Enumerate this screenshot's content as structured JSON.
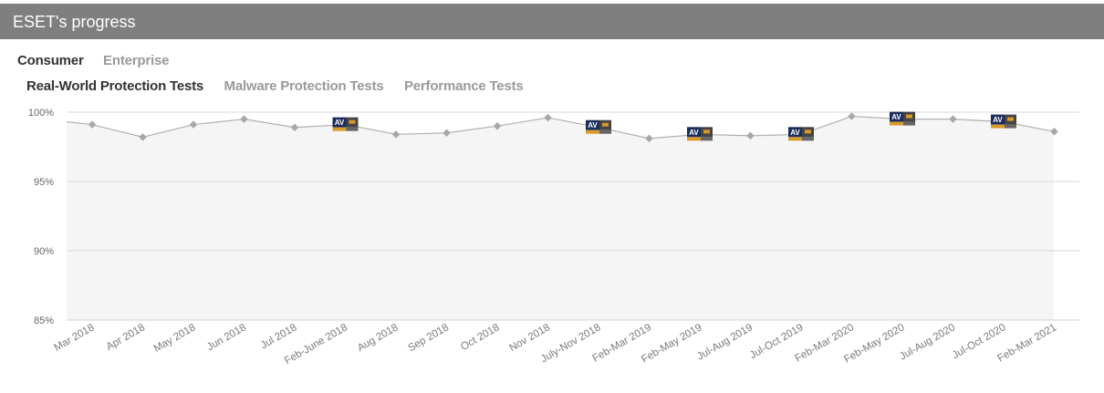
{
  "header": {
    "title": "ESET's progress"
  },
  "tabs_primary": [
    {
      "label": "Consumer",
      "active": true
    },
    {
      "label": "Enterprise",
      "active": false
    }
  ],
  "tabs_secondary": [
    {
      "label": "Real-World Protection Tests",
      "active": true
    },
    {
      "label": "Malware Protection Tests",
      "active": false
    },
    {
      "label": "Performance Tests",
      "active": false
    }
  ],
  "award_badge": {
    "text": "AV",
    "colors": {
      "navy": "#1b2d5b",
      "gold": "#d89a2b",
      "dark": "#444444"
    }
  },
  "colors": {
    "line": "#b0b0b0",
    "marker": "#a8a8a8",
    "area": "#f5f5f5",
    "grid": "#d9d9d9",
    "axis": "#c8d4e6"
  },
  "chart_data": {
    "type": "line",
    "title": "",
    "xlabel": "",
    "ylabel": "",
    "ylim": [
      85,
      100
    ],
    "ytick_labels": [
      "100%",
      "95%",
      "90%",
      "85%"
    ],
    "ytick_values": [
      100,
      95,
      90,
      85
    ],
    "grid": true,
    "categories": [
      "Mar 2018",
      "Apr 2018",
      "May 2018",
      "Jun 2018",
      "Jul 2018",
      "Feb-June 2018",
      "Aug 2018",
      "Sep 2018",
      "Oct 2018",
      "Nov 2018",
      "July-Nov 2018",
      "Feb-Mar 2019",
      "Feb-May 2019",
      "Jul-Aug 2019",
      "Jul-Oct 2019",
      "Feb-Mar 2020",
      "Feb-May 2020",
      "Jul-Aug 2020",
      "Jul-Oct 2020",
      "Feb-Mar 2021"
    ],
    "values": [
      99.1,
      98.2,
      99.1,
      99.5,
      98.9,
      99.1,
      98.4,
      98.5,
      99.0,
      99.6,
      98.9,
      98.1,
      98.4,
      98.3,
      98.4,
      99.7,
      99.5,
      99.5,
      99.3,
      98.6
    ],
    "start_value": 99.3,
    "award_categories": [
      "Feb-June 2018",
      "July-Nov 2018",
      "Feb-May 2019",
      "Jul-Oct 2019",
      "Feb-May 2020",
      "Jul-Oct 2020"
    ]
  }
}
